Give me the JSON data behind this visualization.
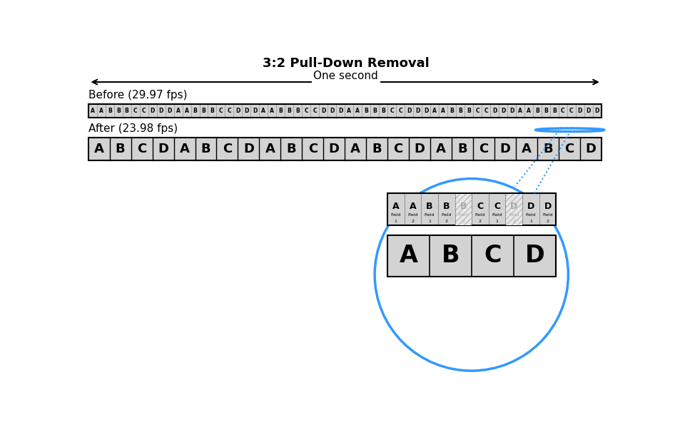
{
  "title": "3:2 Pull-Down Removal",
  "one_second_label": "One second",
  "before_label": "Before (29.97 fps)",
  "after_label": "After (23.98 fps)",
  "before_sequence": [
    "A",
    "A",
    "B",
    "B",
    "B",
    "C",
    "C",
    "D",
    "D",
    "D",
    "A",
    "A",
    "B",
    "B",
    "B",
    "C",
    "C",
    "D",
    "D",
    "D",
    "A",
    "A",
    "B",
    "B",
    "B",
    "C",
    "C",
    "D",
    "D",
    "D",
    "A",
    "A",
    "B",
    "B",
    "B",
    "C",
    "C",
    "D",
    "D",
    "D",
    "A",
    "A",
    "B",
    "B",
    "B",
    "C",
    "C",
    "D",
    "D",
    "D",
    "A",
    "A",
    "B",
    "B",
    "B",
    "C",
    "C",
    "D",
    "D",
    "D"
  ],
  "after_sequence": [
    "A",
    "B",
    "C",
    "D",
    "A",
    "B",
    "C",
    "D",
    "A",
    "B",
    "C",
    "D",
    "A",
    "B",
    "C",
    "D",
    "A",
    "B",
    "C",
    "D",
    "A",
    "B",
    "C",
    "D"
  ],
  "zoom_fields": [
    "A",
    "A",
    "B",
    "B",
    "B",
    "C",
    "C",
    "D",
    "D",
    "D"
  ],
  "zoom_labels": [
    "Field\n1",
    "Field\n2",
    "Field\n1",
    "Field\n2",
    "Field\n1",
    "Field\n2",
    "Field\n1",
    "Field\n2",
    "Field\n1",
    "Field\n2"
  ],
  "zoom_grayed": [
    4,
    7
  ],
  "zoom_output": [
    "A",
    "B",
    "C",
    "D"
  ],
  "bg_color": "#ffffff",
  "bar_fill": "#d3d3d3",
  "bar_border": "#000000",
  "highlight_color": "#3399ff",
  "grayed_color": "#cccccc"
}
